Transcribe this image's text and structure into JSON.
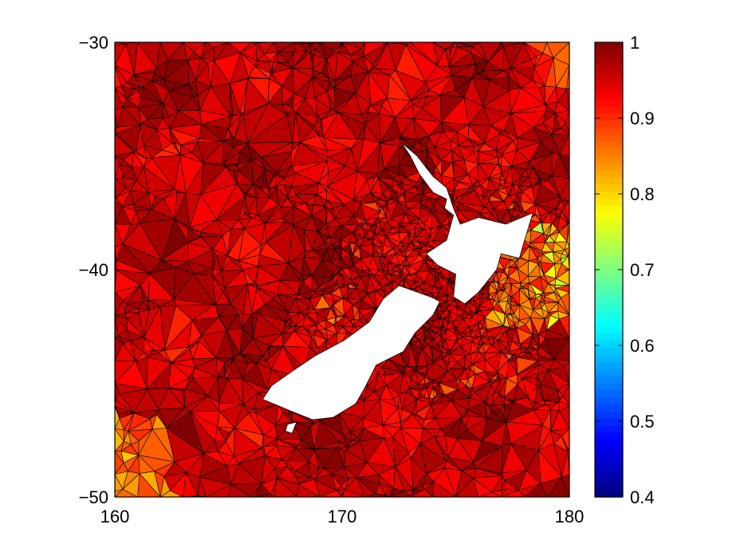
{
  "chart_data": {
    "type": "heatmap",
    "title": "",
    "xlabel": "",
    "ylabel": "",
    "xlim": [
      160,
      180
    ],
    "ylim": [
      -50,
      -30
    ],
    "x_ticks": [
      "160",
      "170",
      "180"
    ],
    "x_tick_values": [
      160,
      170,
      180
    ],
    "y_ticks": [
      "-30",
      "-40",
      "-50"
    ],
    "y_tick_values": [
      -30,
      -40,
      -50
    ],
    "grid": false,
    "mesh": "unstructured triangular mesh around New Zealand, finer near coast",
    "colormap": "jet",
    "clim": [
      0.4,
      1
    ],
    "colorbar": {
      "ticks": [
        "1",
        "0.9",
        "0.8",
        "0.7",
        "0.6",
        "0.5",
        "0.4"
      ],
      "tick_values": [
        1,
        0.9,
        0.8,
        0.7,
        0.6,
        0.5,
        0.4
      ],
      "location": "right"
    },
    "field_range": [
      0.7,
      1.0
    ],
    "landmasses": [
      {
        "name": "North Island",
        "outline": [
          [
            172.6,
            -34.4
          ],
          [
            173.3,
            -35.0
          ],
          [
            174.0,
            -35.9
          ],
          [
            174.6,
            -36.4
          ],
          [
            174.9,
            -37.3
          ],
          [
            175.2,
            -38.0
          ],
          [
            176.0,
            -37.7
          ],
          [
            177.2,
            -38.0
          ],
          [
            178.4,
            -37.5
          ],
          [
            178.0,
            -38.8
          ],
          [
            177.8,
            -39.5
          ],
          [
            177.0,
            -39.3
          ],
          [
            176.8,
            -40.0
          ],
          [
            176.0,
            -41.0
          ],
          [
            175.4,
            -41.5
          ],
          [
            174.9,
            -41.2
          ],
          [
            175.0,
            -40.2
          ],
          [
            174.2,
            -39.8
          ],
          [
            173.7,
            -39.3
          ],
          [
            174.6,
            -38.7
          ],
          [
            174.9,
            -37.6
          ],
          [
            174.5,
            -37.3
          ],
          [
            174.6,
            -36.9
          ],
          [
            174.0,
            -36.6
          ],
          [
            173.4,
            -35.8
          ],
          [
            173.0,
            -35.0
          ]
        ]
      },
      {
        "name": "South Island",
        "outline": [
          [
            172.5,
            -40.7
          ],
          [
            173.9,
            -41.2
          ],
          [
            174.3,
            -41.4
          ],
          [
            174.0,
            -42.0
          ],
          [
            173.2,
            -42.8
          ],
          [
            172.7,
            -43.6
          ],
          [
            171.5,
            -44.2
          ],
          [
            171.0,
            -45.2
          ],
          [
            170.6,
            -45.9
          ],
          [
            169.6,
            -46.5
          ],
          [
            168.7,
            -46.6
          ],
          [
            167.7,
            -46.2
          ],
          [
            166.5,
            -45.7
          ],
          [
            166.9,
            -45.1
          ],
          [
            167.9,
            -44.4
          ],
          [
            168.8,
            -43.8
          ],
          [
            170.1,
            -43.1
          ],
          [
            171.2,
            -42.3
          ],
          [
            171.8,
            -41.3
          ]
        ]
      },
      {
        "name": "Stewart Island",
        "outline": [
          [
            167.6,
            -46.8
          ],
          [
            168.0,
            -46.7
          ],
          [
            167.8,
            -47.2
          ],
          [
            167.5,
            -47.1
          ]
        ]
      }
    ]
  }
}
